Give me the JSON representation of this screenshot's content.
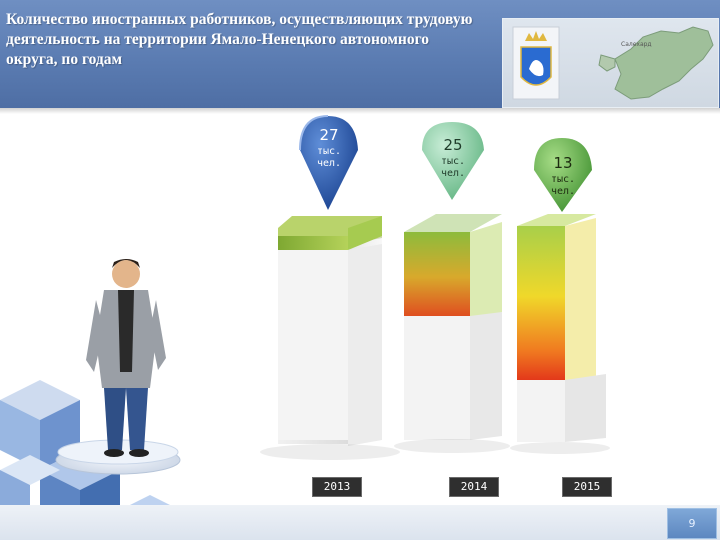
{
  "slide": {
    "title": "Количество иностранных работников, осуществляющих трудовую деятельность на территории Ямало-Ненецкого автономного округа, по годам",
    "page_number": "9"
  },
  "map": {
    "label": "Салехард"
  },
  "colors": {
    "header": "#5b7cb2",
    "pin_2013": "#2a56a8",
    "pin_2014": "#6fb98a",
    "pin_2015": "#6aa84f"
  },
  "chart_data": {
    "type": "bar",
    "categories": [
      "2013",
      "2014",
      "2015"
    ],
    "values": [
      27,
      25,
      13
    ],
    "value_labels": [
      "27",
      "25",
      "13"
    ],
    "unit_label": "тыс. чел."
  }
}
